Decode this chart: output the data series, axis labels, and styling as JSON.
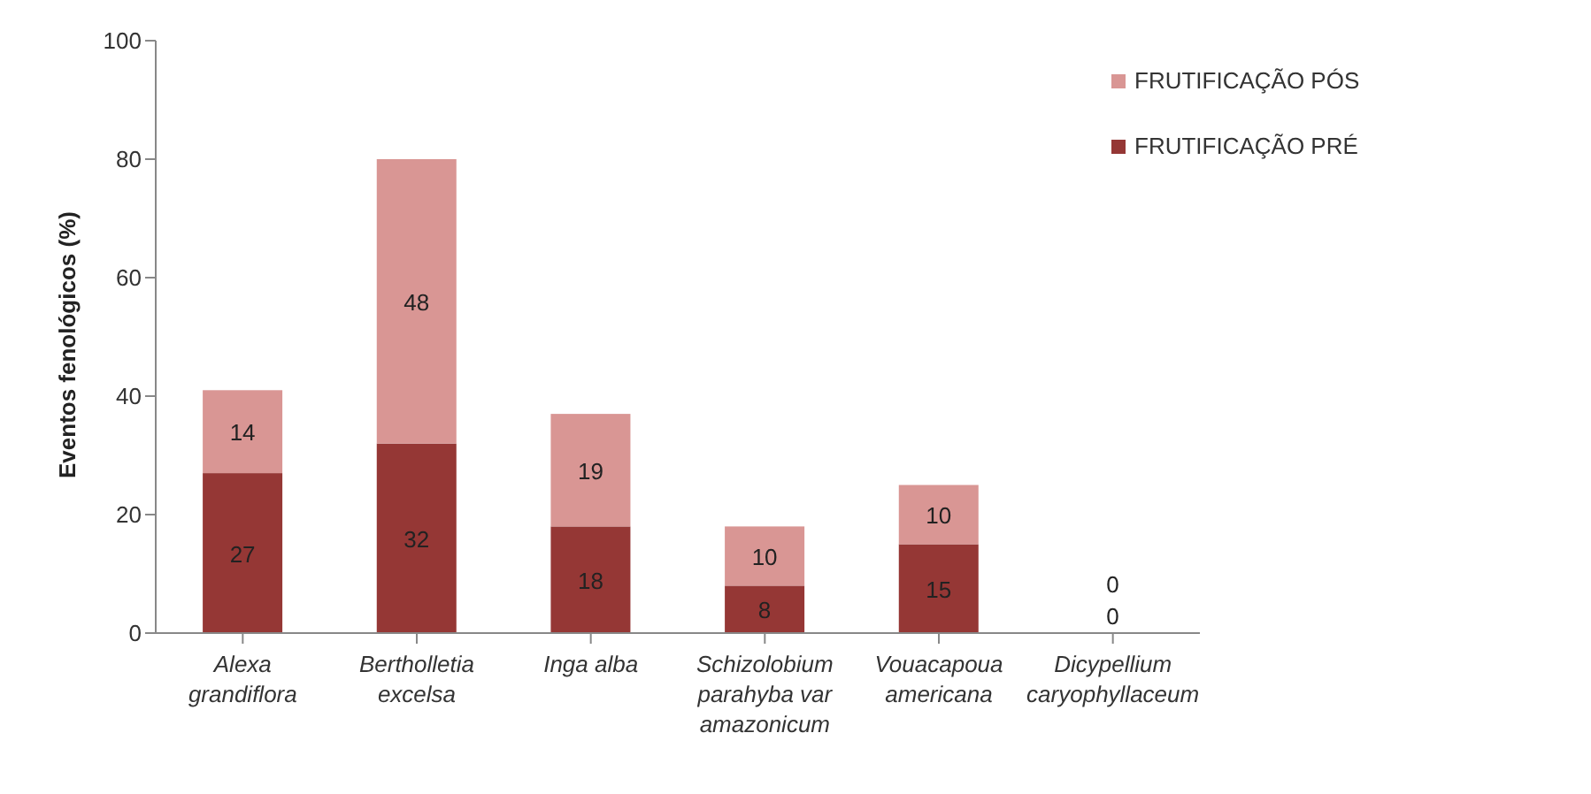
{
  "chart_data": {
    "type": "bar",
    "stacked": true,
    "ylabel": "Eventos fenológicos (%)",
    "categories": [
      "Alexa grandiflora",
      "Bertholletia excelsa",
      "Inga alba",
      "Schizolobium parahyba var amazonicum",
      "Vouacapoua americana",
      "Dicypellium caryophyllaceum"
    ],
    "series": [
      {
        "name": "FRUTIFICAÇÃO PRÉ",
        "color": "#953735",
        "values": [
          27,
          32,
          18,
          8,
          15,
          0
        ]
      },
      {
        "name": "FRUTIFICAÇÃO PÓS",
        "color": "#d99694",
        "values": [
          14,
          48,
          19,
          10,
          10,
          0
        ]
      }
    ],
    "ylim": [
      0,
      100
    ],
    "yticks": [
      0,
      20,
      40,
      60,
      80,
      100
    ],
    "grid": false,
    "legend": "top right",
    "data_labels": true
  }
}
